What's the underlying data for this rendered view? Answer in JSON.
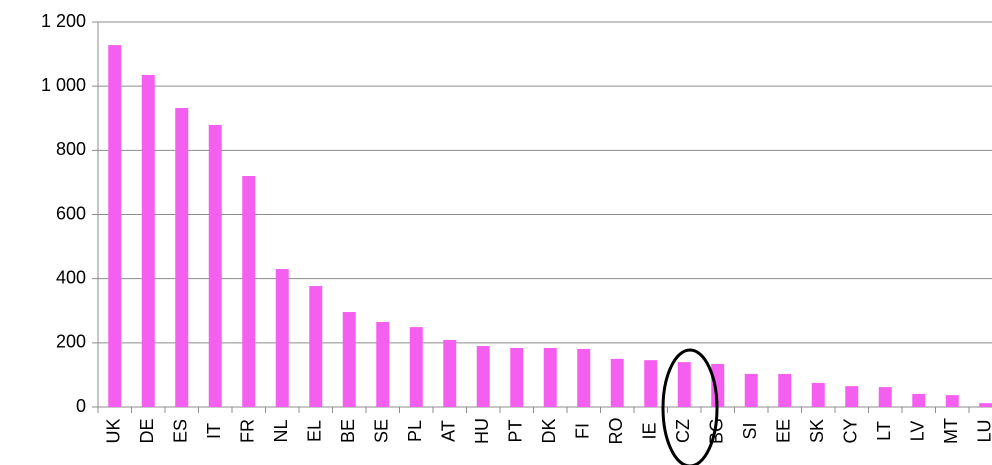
{
  "chart_data": {
    "type": "bar",
    "categories": [
      "UK",
      "DE",
      "ES",
      "IT",
      "FR",
      "NL",
      "EL",
      "BE",
      "SE",
      "PL",
      "AT",
      "HU",
      "PT",
      "DK",
      "FI",
      "RO",
      "IE",
      "CZ",
      "BG",
      "SI",
      "EE",
      "SK",
      "CY",
      "LT",
      "LV",
      "MT",
      "LU"
    ],
    "values": [
      1128,
      1035,
      932,
      879,
      720,
      430,
      377,
      296,
      265,
      249,
      209,
      190,
      184,
      184,
      181,
      150,
      146,
      140,
      134,
      103,
      103,
      75,
      65,
      62,
      41,
      37,
      12
    ],
    "color": "#f55ff0",
    "ylim": [
      0,
      1200
    ],
    "yticks": [
      0,
      200,
      400,
      600,
      800,
      {
        "value": 1000,
        "label": "1 000"
      },
      {
        "value": 1200,
        "label": "1 200"
      }
    ],
    "grid": true
  }
}
